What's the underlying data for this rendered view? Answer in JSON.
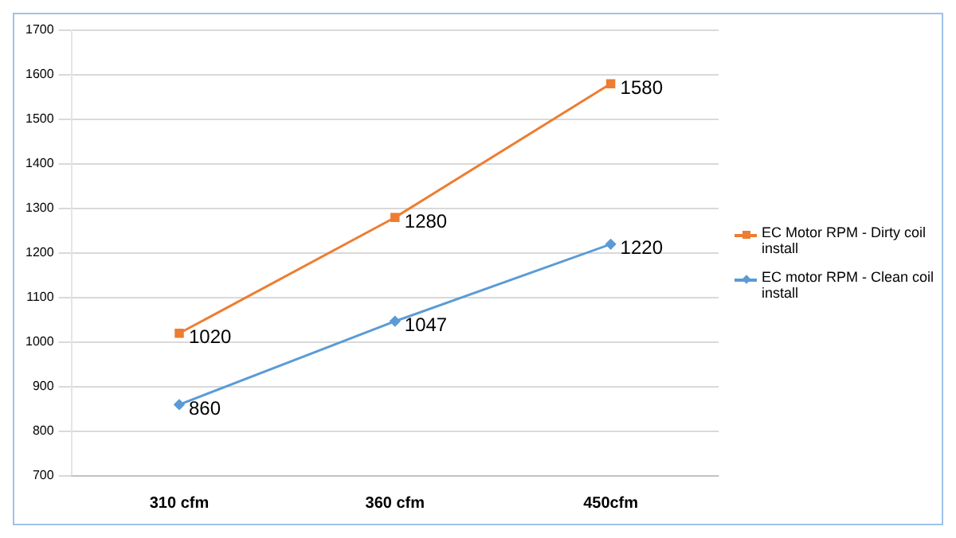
{
  "chart_data": {
    "type": "line",
    "categories": [
      "310 cfm",
      "360 cfm",
      "450cfm"
    ],
    "series": [
      {
        "name": "EC Motor RPM - Dirty coil install",
        "color": "#ed7d31",
        "marker": "square",
        "values": [
          1020,
          1280,
          1580
        ]
      },
      {
        "name": "EC motor RPM - Clean coil install",
        "color": "#5b9bd5",
        "marker": "diamond",
        "values": [
          860,
          1047,
          1220
        ]
      }
    ],
    "ylim": [
      700,
      1700
    ],
    "yticks": [
      700,
      800,
      900,
      1000,
      1100,
      1200,
      1300,
      1400,
      1500,
      1600,
      1700
    ],
    "grid": "y",
    "legend": "right",
    "data_labels": true,
    "line_style": "solid"
  }
}
